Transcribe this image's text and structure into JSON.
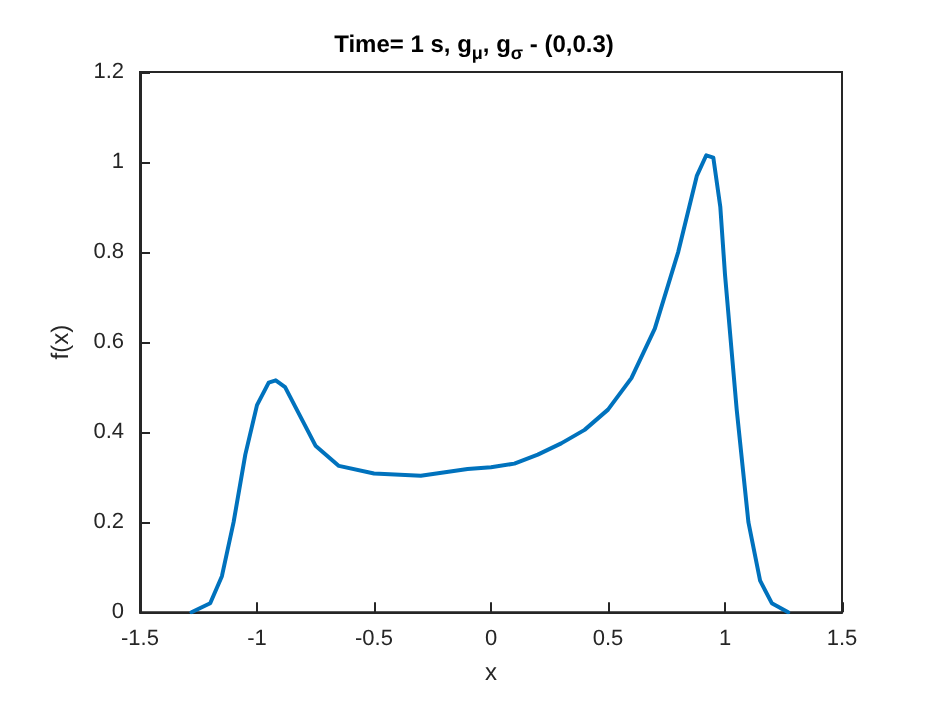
{
  "chart_data": {
    "type": "line",
    "title": "Time= 1 s, g$_{μ}$, g$_{σ}$ - (0,0.3)",
    "xlabel": "x",
    "ylabel": "f(x)",
    "xlim": [
      -1.5,
      1.5
    ],
    "xticks": [
      -1.5,
      -1,
      -0.5,
      0,
      0.5,
      1,
      1.5
    ],
    "ylim": [
      0,
      1.2
    ],
    "yticks": [
      0,
      0.2,
      0.4,
      0.6,
      0.8,
      1,
      1.2
    ],
    "grid": false,
    "marker": "none",
    "line_style": "solid",
    "series": [
      {
        "color": "#0072bd",
        "x": [
          -1.28,
          -1.2,
          -1.15,
          -1.1,
          -1.05,
          -1.0,
          -0.95,
          -0.92,
          -0.88,
          -0.82,
          -0.75,
          -0.65,
          -0.5,
          -0.3,
          -0.1,
          0,
          0.1,
          0.2,
          0.3,
          0.4,
          0.5,
          0.6,
          0.7,
          0.8,
          0.88,
          0.92,
          0.95,
          0.98,
          1.0,
          1.05,
          1.1,
          1.15,
          1.2,
          1.27
        ],
        "values": [
          0,
          0.02,
          0.08,
          0.2,
          0.35,
          0.46,
          0.51,
          0.515,
          0.5,
          0.44,
          0.37,
          0.325,
          0.308,
          0.303,
          0.318,
          0.322,
          0.33,
          0.35,
          0.375,
          0.405,
          0.45,
          0.52,
          0.63,
          0.8,
          0.97,
          1.015,
          1.01,
          0.9,
          0.75,
          0.45,
          0.2,
          0.07,
          0.02,
          0
        ]
      }
    ]
  }
}
